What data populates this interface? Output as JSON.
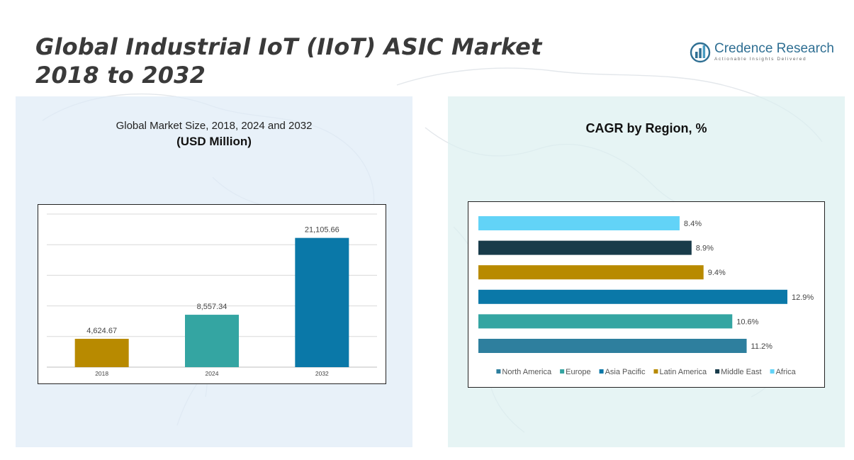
{
  "header": {
    "title_line1": "Global Industrial IoT (IIoT) ASIC Market",
    "title_line2": "2018 to 2032"
  },
  "logo": {
    "name": "Credence Research",
    "tagline": "Actionable Insights Delivered",
    "icon": "bar-chart-globe-icon"
  },
  "colors": {
    "north_america": "#2e7f9e",
    "europe": "#34a5a2",
    "asia_pacific": "#0a78a8",
    "latin_america": "#b88a00",
    "middle_east": "#183b4a",
    "africa": "#62d3f7"
  },
  "chart_data": [
    {
      "type": "bar",
      "title": "Global Market Size, 2018, 2024 and 2032",
      "subtitle": "(USD Million)",
      "categories": [
        "2018",
        "2024",
        "2032"
      ],
      "values": [
        4624.67,
        8557.34,
        21105.66
      ],
      "labels": [
        "4,624.67",
        "8,557.34",
        "21,105.66"
      ],
      "colors": [
        "#b88a00",
        "#34a5a2",
        "#0a78a8"
      ],
      "ylim": [
        0,
        25000
      ],
      "gridlines": [
        5000,
        10000,
        15000,
        20000,
        25000
      ],
      "grid": true,
      "xlabel": "",
      "ylabel": ""
    },
    {
      "type": "bar",
      "orientation": "horizontal",
      "title": "CAGR by Region, %",
      "categories": [
        "Africa",
        "Middle East",
        "Latin America",
        "Asia Pacific",
        "Europe",
        "North America"
      ],
      "values": [
        8.4,
        8.9,
        9.4,
        12.9,
        10.6,
        11.2
      ],
      "labels": [
        "8.4%",
        "8.9%",
        "9.4%",
        "12.9%",
        "10.6%",
        "11.2%"
      ],
      "colors": [
        "#62d3f7",
        "#183b4a",
        "#b88a00",
        "#0a78a8",
        "#34a5a2",
        "#2e7f9e"
      ],
      "xlim": [
        0,
        12.9
      ],
      "grid": false,
      "legend": {
        "placement": "bottom",
        "entries": [
          {
            "name": "North America",
            "color": "#2e7f9e"
          },
          {
            "name": "Europe",
            "color": "#34a5a2"
          },
          {
            "name": "Asia Pacific",
            "color": "#0a78a8"
          },
          {
            "name": "Latin America",
            "color": "#b88a00"
          },
          {
            "name": "Middle East",
            "color": "#183b4a"
          },
          {
            "name": "Africa",
            "color": "#62d3f7"
          }
        ]
      }
    }
  ]
}
